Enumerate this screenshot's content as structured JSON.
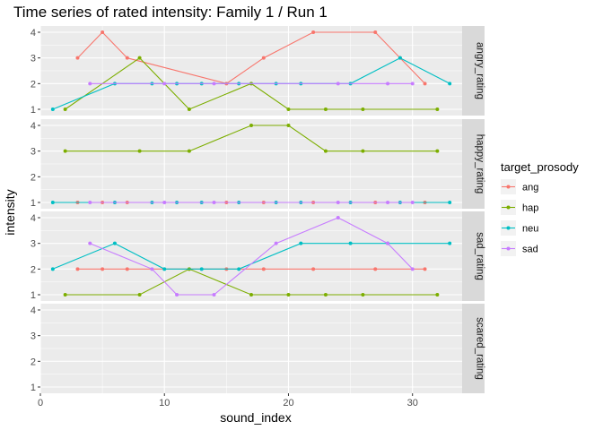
{
  "chart_data": {
    "type": "line",
    "title": "Time series of rated intensity: Family 1 / Run 1",
    "xlabel": "sound_index",
    "ylabel": "intensity",
    "xlim": [
      0,
      34
    ],
    "ylim": [
      1,
      4
    ],
    "x_ticks": [
      0,
      10,
      20,
      30
    ],
    "y_ticks": [
      1,
      2,
      3,
      4
    ],
    "grid": true,
    "legend": {
      "title": "target_prosody",
      "placement": "right",
      "entries": [
        {
          "name": "ang",
          "color": "#F8766D"
        },
        {
          "name": "hap",
          "color": "#7CAE00"
        },
        {
          "name": "neu",
          "color": "#00BFC4"
        },
        {
          "name": "sad",
          "color": "#C77CFF"
        }
      ]
    },
    "facets": [
      {
        "label": "angry_rating",
        "series": [
          {
            "name": "ang",
            "x": [
              3,
              5,
              7,
              15,
              18,
              22,
              27,
              29,
              31
            ],
            "y": [
              3,
              4,
              3,
              2,
              3,
              4,
              4,
              3,
              2
            ]
          },
          {
            "name": "hap",
            "x": [
              2,
              8,
              12,
              17,
              20,
              23,
              26,
              32
            ],
            "y": [
              1,
              3,
              1,
              2,
              1,
              1,
              1,
              1
            ]
          },
          {
            "name": "neu",
            "x": [
              1,
              6,
              9,
              11,
              13,
              16,
              19,
              21,
              25,
              29,
              33
            ],
            "y": [
              1,
              2,
              2,
              2,
              2,
              2,
              2,
              2,
              2,
              3,
              2
            ]
          },
          {
            "name": "sad",
            "x": [
              4,
              10,
              14,
              24,
              28,
              30
            ],
            "y": [
              2,
              2,
              2,
              2,
              2,
              2
            ]
          }
        ]
      },
      {
        "label": "happy_rating",
        "series": [
          {
            "name": "ang",
            "x": [
              3,
              5,
              7,
              15,
              18,
              22,
              27,
              31
            ],
            "y": [
              1,
              1,
              1,
              1,
              1,
              1,
              1,
              1
            ]
          },
          {
            "name": "hap",
            "x": [
              2,
              8,
              12,
              17,
              20,
              23,
              26,
              32
            ],
            "y": [
              3,
              3,
              3,
              4,
              4,
              3,
              3,
              3
            ]
          },
          {
            "name": "neu",
            "x": [
              1,
              6,
              9,
              11,
              13,
              16,
              19,
              21,
              25,
              29,
              33
            ],
            "y": [
              1,
              1,
              1,
              1,
              1,
              1,
              1,
              1,
              1,
              1,
              1
            ]
          },
          {
            "name": "sad",
            "x": [
              4,
              10,
              14,
              24,
              28,
              30
            ],
            "y": [
              1,
              1,
              1,
              1,
              1,
              1
            ]
          }
        ]
      },
      {
        "label": "sad_rating",
        "series": [
          {
            "name": "ang",
            "x": [
              3,
              5,
              7,
              15,
              18,
              22,
              27,
              31
            ],
            "y": [
              2,
              2,
              2,
              2,
              2,
              2,
              2,
              2
            ]
          },
          {
            "name": "hap",
            "x": [
              2,
              8,
              12,
              17,
              20,
              23,
              26,
              32
            ],
            "y": [
              1,
              1,
              2,
              1,
              1,
              1,
              1,
              1
            ]
          },
          {
            "name": "neu",
            "x": [
              1,
              6,
              10,
              13,
              16,
              21,
              25,
              28,
              33
            ],
            "y": [
              2,
              3,
              2,
              2,
              2,
              3,
              3,
              3,
              3
            ]
          },
          {
            "name": "sad",
            "x": [
              4,
              9,
              11,
              14,
              19,
              24,
              28,
              30
            ],
            "y": [
              3,
              2,
              1,
              1,
              3,
              4,
              3,
              2
            ]
          }
        ]
      },
      {
        "label": "scared_rating",
        "series": []
      }
    ]
  }
}
